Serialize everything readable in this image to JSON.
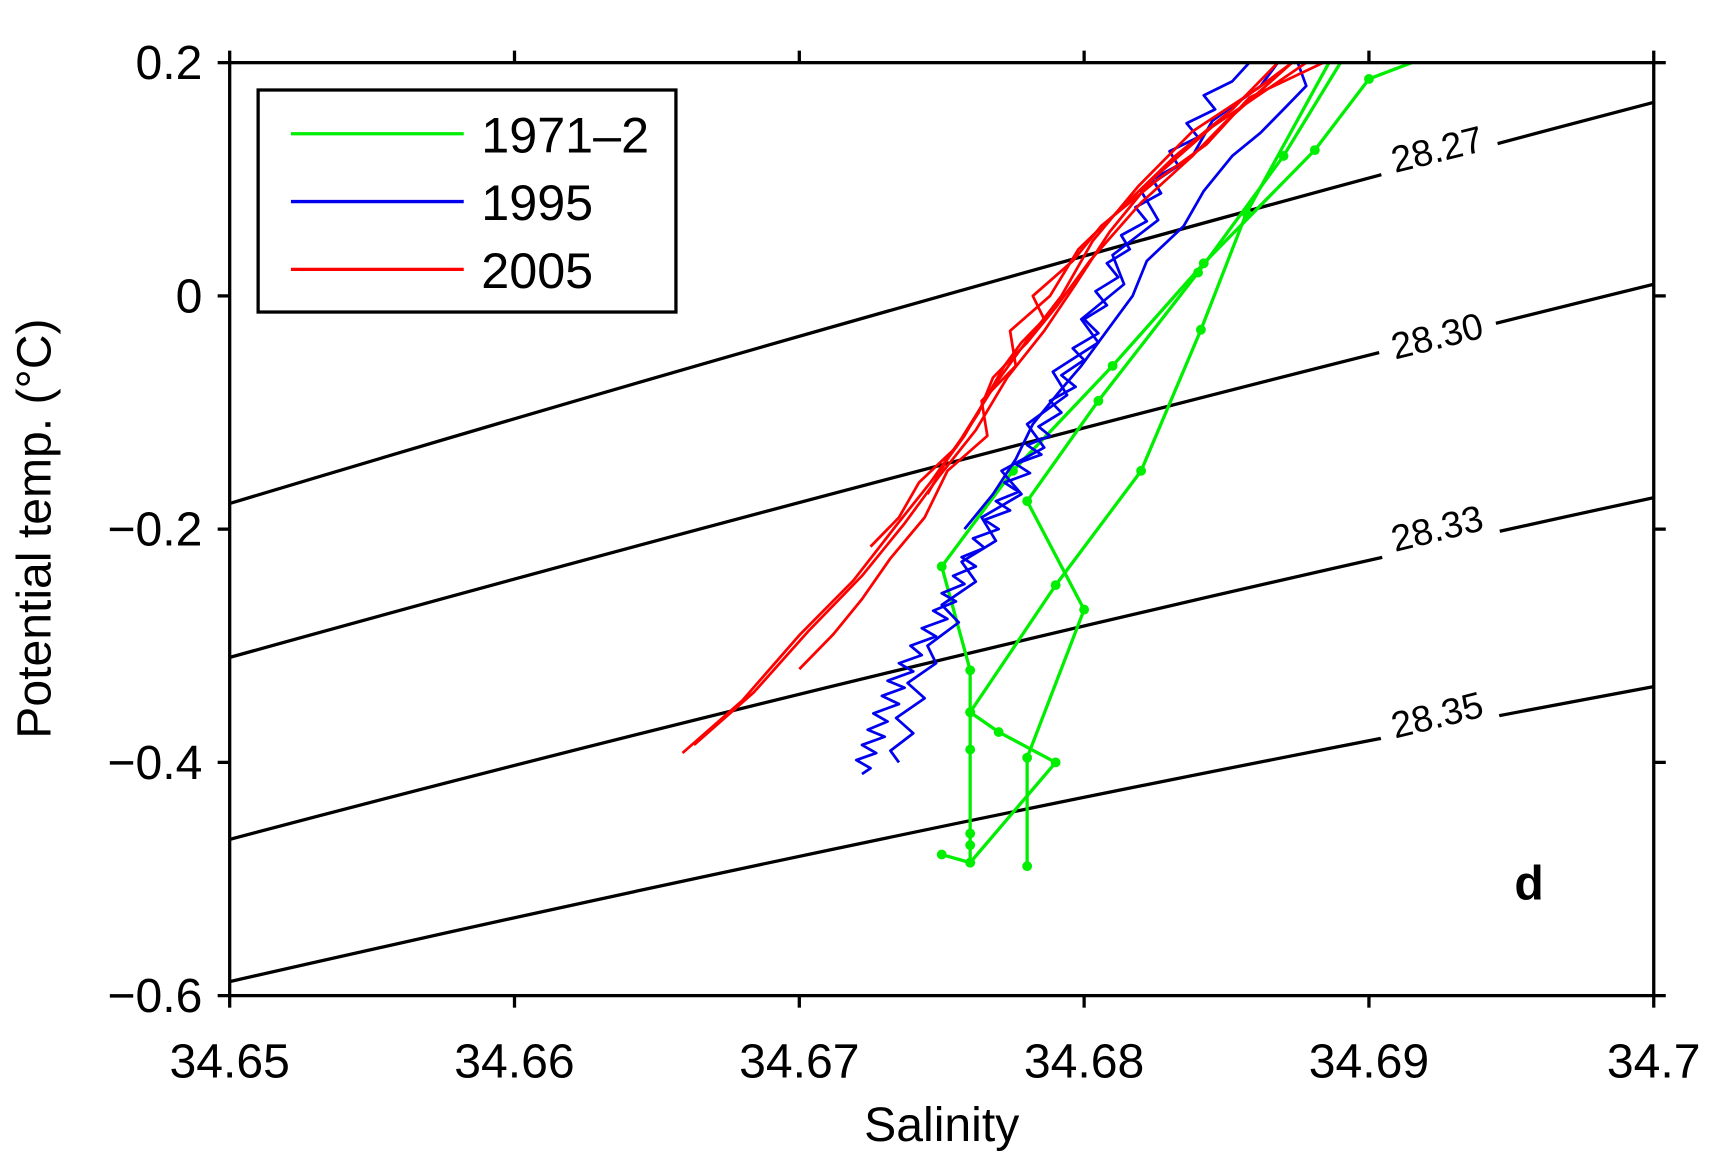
{
  "chart_data": {
    "type": "line",
    "panel_label": "d",
    "xlabel": "Salinity",
    "ylabel": "Potential temp. (°C)",
    "xlim": [
      34.65,
      34.7
    ],
    "ylim": [
      -0.6,
      0.2
    ],
    "xticks": [
      34.65,
      34.66,
      34.67,
      34.68,
      34.69,
      34.7
    ],
    "xtick_labels": [
      "34.65",
      "34.66",
      "34.67",
      "34.68",
      "34.69",
      "34.7"
    ],
    "yticks": [
      0.2,
      0,
      -0.2,
      -0.4,
      -0.6
    ],
    "ytick_labels": [
      "0.2",
      "0",
      "−0.2",
      "−0.4",
      "−0.6"
    ],
    "grid": false,
    "legend_position": "top-left",
    "legend": [
      {
        "label": "1971–2",
        "color": "#00ee00"
      },
      {
        "label": "1995",
        "color": "#0000ee"
      },
      {
        "label": "2005",
        "color": "#ff0000"
      }
    ],
    "isopycnals": [
      {
        "label": "28.27",
        "label_pos": [
          34.6925,
          0.115
        ],
        "points": [
          [
            34.65,
            -0.178
          ],
          [
            34.675,
            0.0
          ],
          [
            34.7,
            0.166
          ]
        ]
      },
      {
        "label": "28.30",
        "label_pos": [
          34.6925,
          -0.045
        ],
        "points": [
          [
            34.65,
            -0.31
          ],
          [
            34.675,
            -0.145
          ],
          [
            34.7,
            0.01
          ]
        ]
      },
      {
        "label": "28.33",
        "label_pos": [
          34.6925,
          -0.21
        ],
        "points": [
          [
            34.65,
            -0.466
          ],
          [
            34.675,
            -0.312
          ],
          [
            34.7,
            -0.173
          ]
        ]
      },
      {
        "label": "28.35",
        "label_pos": [
          34.6925,
          -0.37
        ],
        "points": [
          [
            34.65,
            -0.588
          ],
          [
            34.675,
            -0.455
          ],
          [
            34.7,
            -0.335
          ]
        ]
      }
    ],
    "series": [
      {
        "name": "1971–2",
        "color": "#00ee00",
        "markers": true,
        "profiles": [
          [
            [
              34.6886,
              0.2
            ],
            [
              34.6857,
              0.071
            ],
            [
              34.6841,
              -0.029
            ],
            [
              34.682,
              -0.15
            ],
            [
              34.679,
              -0.248
            ],
            [
              34.676,
              -0.357
            ],
            [
              34.677,
              -0.374
            ],
            [
              34.679,
              -0.4
            ],
            [
              34.676,
              -0.486
            ],
            [
              34.675,
              -0.479
            ]
          ],
          [
            [
              34.6915,
              0.2
            ],
            [
              34.69,
              0.186
            ],
            [
              34.6881,
              0.125
            ],
            [
              34.6842,
              0.028
            ],
            [
              34.681,
              -0.06
            ],
            [
              34.6775,
              -0.15
            ],
            [
              34.675,
              -0.232
            ],
            [
              34.676,
              -0.321
            ],
            [
              34.676,
              -0.357
            ],
            [
              34.676,
              -0.389
            ],
            [
              34.676,
              -0.461
            ],
            [
              34.676,
              -0.471
            ],
            [
              34.676,
              -0.486
            ]
          ],
          [
            [
              34.678,
              -0.489
            ],
            [
              34.678,
              -0.396
            ],
            [
              34.68,
              -0.269
            ],
            [
              34.678,
              -0.176
            ],
            [
              34.6805,
              -0.09
            ],
            [
              34.684,
              0.02
            ],
            [
              34.687,
              0.12
            ],
            [
              34.689,
              0.2
            ]
          ]
        ]
      },
      {
        "name": "1995",
        "color": "#0000ee",
        "markers": false,
        "profiles": [
          [
            [
              34.6722,
              -0.41
            ],
            [
              34.6725,
              -0.405
            ],
            [
              34.672,
              -0.398
            ],
            [
              34.6727,
              -0.392
            ],
            [
              34.6722,
              -0.385
            ],
            [
              34.673,
              -0.378
            ],
            [
              34.6724,
              -0.372
            ],
            [
              34.6731,
              -0.365
            ],
            [
              34.6726,
              -0.358
            ],
            [
              34.6735,
              -0.35
            ],
            [
              34.6729,
              -0.343
            ],
            [
              34.6737,
              -0.336
            ],
            [
              34.6731,
              -0.33
            ],
            [
              34.674,
              -0.322
            ],
            [
              34.6735,
              -0.315
            ],
            [
              34.6743,
              -0.308
            ],
            [
              34.6739,
              -0.3
            ],
            [
              34.6748,
              -0.292
            ],
            [
              34.6743,
              -0.285
            ],
            [
              34.6752,
              -0.277
            ],
            [
              34.6747,
              -0.27
            ],
            [
              34.6755,
              -0.262
            ],
            [
              34.675,
              -0.255
            ],
            [
              34.6758,
              -0.247
            ],
            [
              34.6754,
              -0.24
            ],
            [
              34.6762,
              -0.232
            ],
            [
              34.6757,
              -0.224
            ],
            [
              34.6765,
              -0.216
            ],
            [
              34.6761,
              -0.208
            ],
            [
              34.677,
              -0.2
            ],
            [
              34.6765,
              -0.192
            ],
            [
              34.6774,
              -0.184
            ],
            [
              34.6769,
              -0.176
            ],
            [
              34.6777,
              -0.168
            ],
            [
              34.6772,
              -0.16
            ],
            [
              34.6781,
              -0.152
            ],
            [
              34.6776,
              -0.144
            ],
            [
              34.6785,
              -0.136
            ],
            [
              34.678,
              -0.128
            ],
            [
              34.6788,
              -0.12
            ],
            [
              34.6784,
              -0.112
            ],
            [
              34.6792,
              -0.1
            ],
            [
              34.6788,
              -0.09
            ],
            [
              34.6797,
              -0.078
            ],
            [
              34.6792,
              -0.068
            ],
            [
              34.68,
              -0.055
            ],
            [
              34.6796,
              -0.045
            ],
            [
              34.6805,
              -0.032
            ],
            [
              34.68,
              -0.02
            ],
            [
              34.6808,
              -0.008
            ],
            [
              34.6804,
              0.004
            ],
            [
              34.6812,
              0.016
            ],
            [
              34.6808,
              0.028
            ],
            [
              34.6816,
              0.04
            ],
            [
              34.6813,
              0.052
            ],
            [
              34.6822,
              0.064
            ],
            [
              34.6818,
              0.076
            ],
            [
              34.6827,
              0.088
            ],
            [
              34.6824,
              0.1
            ],
            [
              34.6833,
              0.112
            ],
            [
              34.683,
              0.124
            ],
            [
              34.684,
              0.136
            ],
            [
              34.6836,
              0.148
            ],
            [
              34.6846,
              0.16
            ],
            [
              34.6842,
              0.172
            ],
            [
              34.6852,
              0.184
            ],
            [
              34.6858,
              0.2
            ]
          ],
          [
            [
              34.6735,
              -0.4
            ],
            [
              34.6732,
              -0.39
            ],
            [
              34.674,
              -0.375
            ],
            [
              34.6734,
              -0.362
            ],
            [
              34.6744,
              -0.345
            ],
            [
              34.6738,
              -0.332
            ],
            [
              34.6748,
              -0.315
            ],
            [
              34.6745,
              -0.3
            ],
            [
              34.6756,
              -0.28
            ],
            [
              34.675,
              -0.265
            ],
            [
              34.6762,
              -0.245
            ],
            [
              34.6757,
              -0.228
            ],
            [
              34.6769,
              -0.21
            ],
            [
              34.6764,
              -0.19
            ],
            [
              34.6778,
              -0.17
            ],
            [
              34.6771,
              -0.15
            ],
            [
              34.6786,
              -0.13
            ],
            [
              34.678,
              -0.11
            ],
            [
              34.6794,
              -0.085
            ],
            [
              34.6789,
              -0.065
            ],
            [
              34.6805,
              -0.04
            ],
            [
              34.6799,
              -0.02
            ],
            [
              34.6814,
              0.01
            ],
            [
              34.681,
              0.035
            ],
            [
              34.6826,
              0.065
            ],
            [
              34.682,
              0.09
            ],
            [
              34.6838,
              0.12
            ],
            [
              34.6845,
              0.15
            ],
            [
              34.6862,
              0.18
            ],
            [
              34.6868,
              0.2
            ]
          ],
          [
            [
              34.6758,
              -0.2
            ],
            [
              34.6768,
              -0.17
            ],
            [
              34.6776,
              -0.14
            ],
            [
              34.6782,
              -0.11
            ],
            [
              34.6792,
              -0.08
            ],
            [
              34.6799,
              -0.06
            ],
            [
              34.6808,
              -0.03
            ],
            [
              34.6817,
              0.0
            ],
            [
              34.6822,
              0.03
            ],
            [
              34.6835,
              0.06
            ],
            [
              34.6842,
              0.09
            ],
            [
              34.6852,
              0.12
            ],
            [
              34.6862,
              0.14
            ],
            [
              34.687,
              0.16
            ],
            [
              34.6878,
              0.18
            ],
            [
              34.6875,
              0.2
            ]
          ]
        ]
      },
      {
        "name": "2005",
        "color": "#ff0000",
        "markers": false,
        "profiles": [
          [
            [
              34.6659,
              -0.392
            ],
            [
              34.668,
              -0.347
            ],
            [
              34.67,
              -0.291
            ],
            [
              34.6719,
              -0.244
            ],
            [
              34.6734,
              -0.197
            ],
            [
              34.6746,
              -0.16
            ],
            [
              34.6757,
              -0.122
            ],
            [
              34.6769,
              -0.075
            ],
            [
              34.678,
              -0.038
            ],
            [
              34.6792,
              0.0
            ],
            [
              34.6803,
              0.047
            ],
            [
              34.6819,
              0.094
            ],
            [
              34.6838,
              0.141
            ],
            [
              34.6861,
              0.178
            ],
            [
              34.6873,
              0.2
            ]
          ],
          [
            [
              34.6663,
              -0.385
            ],
            [
              34.6684,
              -0.34
            ],
            [
              34.6703,
              -0.288
            ],
            [
              34.6722,
              -0.24
            ],
            [
              34.6737,
              -0.195
            ],
            [
              34.6749,
              -0.155
            ],
            [
              34.6762,
              -0.115
            ],
            [
              34.6773,
              -0.07
            ],
            [
              34.6786,
              -0.03
            ],
            [
              34.6797,
              0.01
            ],
            [
              34.6809,
              0.055
            ],
            [
              34.6824,
              0.1
            ],
            [
              34.6845,
              0.145
            ],
            [
              34.6866,
              0.18
            ],
            [
              34.6878,
              0.2
            ]
          ],
          [
            [
              34.6725,
              -0.215
            ],
            [
              34.6735,
              -0.19
            ],
            [
              34.6742,
              -0.16
            ],
            [
              34.6755,
              -0.13
            ],
            [
              34.6763,
              -0.1
            ],
            [
              34.6768,
              -0.07
            ],
            [
              34.678,
              -0.04
            ],
            [
              34.679,
              -0.01
            ],
            [
              34.6802,
              0.03
            ],
            [
              34.682,
              0.08
            ],
            [
              34.6838,
              0.12
            ],
            [
              34.685,
              0.15
            ],
            [
              34.6873,
              0.2
            ]
          ],
          [
            [
              34.67,
              -0.32
            ],
            [
              34.6712,
              -0.29
            ],
            [
              34.6722,
              -0.26
            ],
            [
              34.6732,
              -0.225
            ],
            [
              34.6744,
              -0.19
            ],
            [
              34.6752,
              -0.15
            ],
            [
              34.6766,
              -0.12
            ],
            [
              34.6764,
              -0.09
            ],
            [
              34.6776,
              -0.06
            ],
            [
              34.6774,
              -0.03
            ],
            [
              34.6788,
              0.0
            ],
            [
              34.6798,
              0.04
            ],
            [
              34.6815,
              0.08
            ],
            [
              34.6832,
              0.12
            ],
            [
              34.6852,
              0.16
            ],
            [
              34.6868,
              0.2
            ]
          ],
          [
            [
              34.6745,
              -0.17
            ],
            [
              34.6752,
              -0.14
            ],
            [
              34.6758,
              -0.12
            ],
            [
              34.6765,
              -0.09
            ],
            [
              34.6772,
              -0.06
            ],
            [
              34.6778,
              -0.04
            ],
            [
              34.6786,
              -0.02
            ],
            [
              34.6782,
              0.0
            ],
            [
              34.6796,
              0.03
            ],
            [
              34.6806,
              0.06
            ],
            [
              34.6826,
              0.1
            ],
            [
              34.6843,
              0.13
            ],
            [
              34.6858,
              0.17
            ],
            [
              34.6884,
              0.2
            ]
          ]
        ]
      }
    ]
  }
}
